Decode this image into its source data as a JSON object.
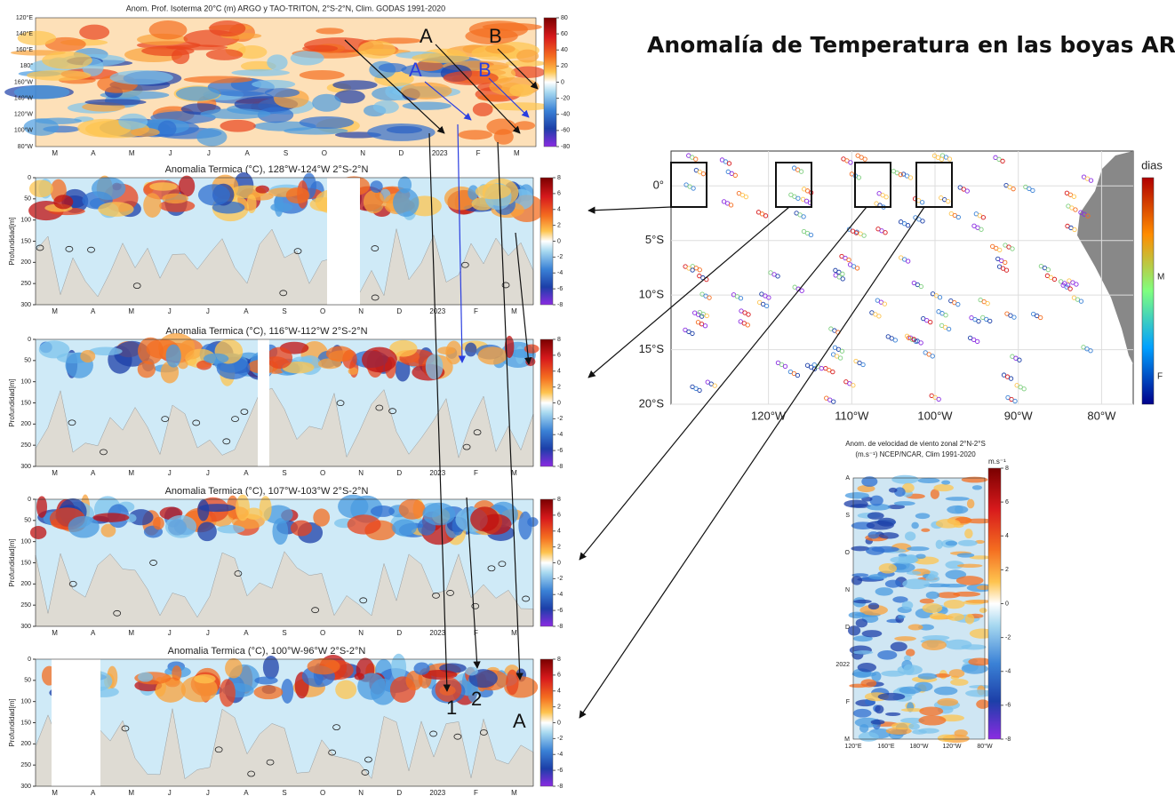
{
  "title": "Anomalía de Temperatura en las boyas ARGO",
  "chart_data": [
    {
      "type": "hovmoller",
      "title": "Anom. Prof. Isoterma 20°C (m) ARGO y TAO-TRITON, 2°S-2°N, Clim. GODAS 1991-2020",
      "categories": [
        "M",
        "A",
        "M",
        "J",
        "J",
        "A",
        "S",
        "O",
        "N",
        "D",
        "2023",
        "F",
        "M"
      ],
      "y_categories": [
        "120°E",
        "140°E",
        "160°E",
        "180°",
        "160°W",
        "140°W",
        "120°W",
        "100°W",
        "80°W"
      ],
      "clim": [
        -80,
        80
      ],
      "cticks": [
        80,
        60,
        40,
        20,
        0,
        -20,
        -40,
        -60,
        -80
      ]
    },
    {
      "type": "depth",
      "title": "Anomalia Termica (°C), 128°W-124°W 2°S-2°N",
      "ylabel": "Profundidad[m]",
      "categories": [
        "M",
        "A",
        "M",
        "J",
        "J",
        "A",
        "S",
        "O",
        "N",
        "D",
        "2023",
        "F",
        "M"
      ],
      "ylim": [
        0,
        300
      ],
      "yticks": [
        0,
        50,
        100,
        150,
        200,
        250,
        300
      ],
      "clim": [
        -8,
        8
      ],
      "cticks": [
        8,
        6,
        4,
        2,
        0,
        -2,
        -4,
        -6,
        -8
      ]
    },
    {
      "type": "depth",
      "title": "Anomalia Termica (°C), 116°W-112°W 2°S-2°N",
      "ylabel": "Profundidad[m]",
      "categories": [
        "M",
        "A",
        "M",
        "J",
        "J",
        "A",
        "S",
        "O",
        "N",
        "D",
        "2023",
        "F",
        "M"
      ],
      "ylim": [
        0,
        300
      ],
      "yticks": [
        0,
        50,
        100,
        150,
        200,
        250,
        300
      ],
      "clim": [
        -8,
        8
      ],
      "cticks": [
        8,
        6,
        4,
        2,
        0,
        -2,
        -4,
        -6,
        -8
      ]
    },
    {
      "type": "depth",
      "title": "Anomalia Termica (°C), 107°W-103°W 2°S-2°N",
      "ylabel": "Profundidad[m]",
      "categories": [
        "M",
        "A",
        "M",
        "J",
        "J",
        "A",
        "S",
        "O",
        "N",
        "D",
        "2023",
        "F",
        "M"
      ],
      "ylim": [
        0,
        300
      ],
      "yticks": [
        0,
        50,
        100,
        150,
        200,
        250,
        300
      ],
      "clim": [
        -8,
        8
      ],
      "cticks": [
        8,
        6,
        4,
        2,
        0,
        -2,
        -4,
        -6,
        -8
      ]
    },
    {
      "type": "depth",
      "title": "Anomalia Termica (°C), 100°W-96°W 2°S-2°N",
      "ylabel": "Profundidad[m]",
      "categories": [
        "M",
        "A",
        "M",
        "J",
        "J",
        "A",
        "S",
        "O",
        "N",
        "D",
        "2023",
        "F",
        "M"
      ],
      "ylim": [
        0,
        300
      ],
      "yticks": [
        0,
        50,
        100,
        150,
        200,
        250,
        300
      ],
      "clim": [
        -8,
        8
      ],
      "cticks": [
        8,
        6,
        4,
        2,
        0,
        -2,
        -4,
        -6,
        -8
      ]
    },
    {
      "type": "map",
      "xlim": [
        -131.7,
        -76.2
      ],
      "ylim": [
        -20,
        3.2
      ],
      "xticks": [
        {
          "value": -120,
          "label": "120°W"
        },
        {
          "value": -110,
          "label": "110°W"
        },
        {
          "value": -100,
          "label": "100°W"
        },
        {
          "value": -90,
          "label": "90°W"
        },
        {
          "value": -80,
          "label": "80°W"
        }
      ],
      "yticks": [
        {
          "value": 0,
          "label": "0°"
        },
        {
          "value": -5,
          "label": "5°S"
        },
        {
          "value": -10,
          "label": "10°S"
        },
        {
          "value": -15,
          "label": "15°S"
        },
        {
          "value": -20,
          "label": "20°S"
        }
      ],
      "colorbar_title": "dias",
      "colorbar_labels": [
        "M",
        "F"
      ]
    },
    {
      "type": "hovmoller",
      "title": [
        "Anom. de velocidad de viento zonal 2°N-2°S",
        "(m.s⁻¹) NCEP/NCAR, Clim 1991-2020"
      ],
      "categories": [
        "120°E",
        "160°E",
        "180°W",
        "120°W",
        "80°W"
      ],
      "y_categories": [
        "A",
        "S",
        "O",
        "N",
        "D",
        "2022",
        "F",
        "M"
      ],
      "clim": [
        -8,
        8
      ],
      "cticks": [
        8,
        6,
        4,
        2,
        0,
        -2,
        -4,
        -6,
        -8
      ],
      "colorbar_title": "m.s⁻¹"
    }
  ],
  "annotations": [
    "A",
    "B",
    "A",
    "B",
    "1",
    "2",
    "A"
  ]
}
